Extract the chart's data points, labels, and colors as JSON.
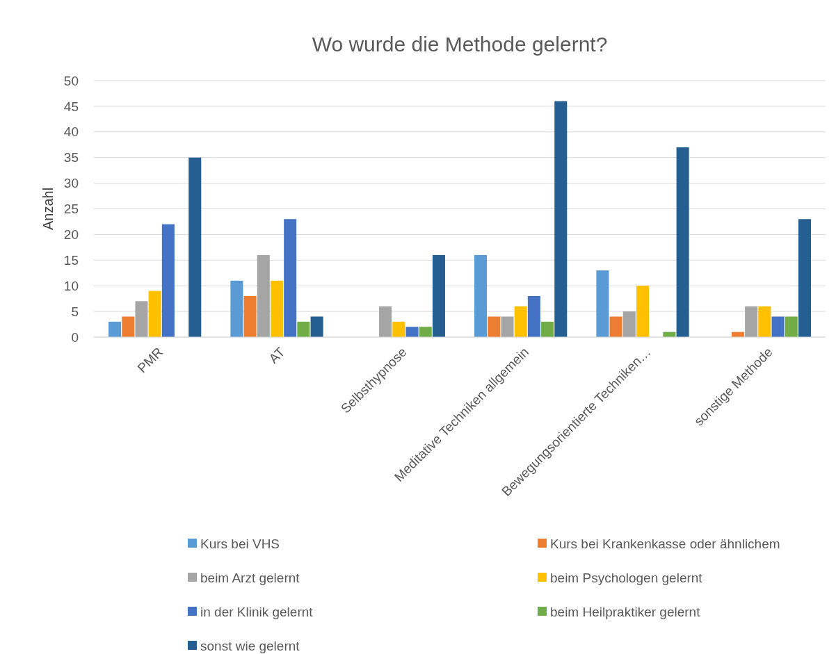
{
  "chart_data": {
    "type": "bar",
    "title": "Wo wurde die Methode gelernt?",
    "ylabel": "Anzahl",
    "categories": [
      "PMR",
      "AT",
      "Selbsthypnose",
      "Meditative Techniken allgemein",
      "Bewegungsorientierte Techniken…",
      "sonstige Methode"
    ],
    "series": [
      {
        "name": "Kurs bei VHS",
        "color": "#5b9bd5",
        "values": [
          3,
          11,
          0,
          16,
          13,
          0
        ]
      },
      {
        "name": "Kurs bei Krankenkasse oder ähnlichem",
        "color": "#ed7d31",
        "values": [
          4,
          8,
          0,
          4,
          4,
          1
        ]
      },
      {
        "name": "beim Arzt gelernt",
        "color": "#a5a5a5",
        "values": [
          7,
          16,
          6,
          4,
          5,
          6
        ]
      },
      {
        "name": "beim Psychologen gelernt",
        "color": "#ffc000",
        "values": [
          9,
          11,
          3,
          6,
          10,
          6
        ]
      },
      {
        "name": "in der Klinik gelernt",
        "color": "#4472c4",
        "values": [
          22,
          23,
          2,
          8,
          0,
          4
        ]
      },
      {
        "name": "beim Heilpraktiker gelernt",
        "color": "#70ad47",
        "values": [
          0,
          3,
          2,
          3,
          1,
          4
        ]
      },
      {
        "name": "sonst wie gelernt",
        "color": "#255e91",
        "values": [
          35,
          4,
          16,
          46,
          37,
          23
        ]
      }
    ],
    "ylim": [
      0,
      50
    ],
    "yticks": [
      0,
      5,
      10,
      15,
      20,
      25,
      30,
      35,
      40,
      45,
      50
    ],
    "grid": "y",
    "legend": "bottom"
  }
}
